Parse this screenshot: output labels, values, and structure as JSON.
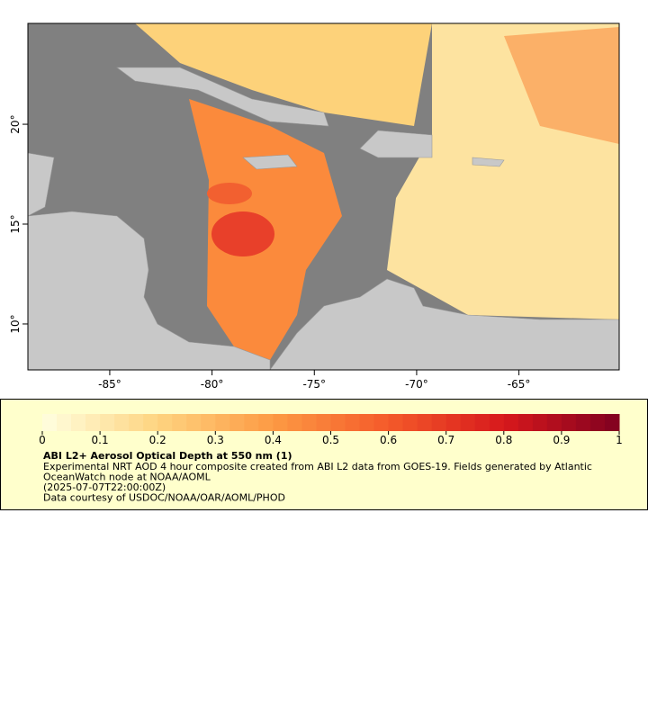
{
  "map": {
    "xlim": [
      -89,
      -60.1
    ],
    "ylim": [
      7.7,
      25.05
    ],
    "xticks": [
      {
        "value": -85,
        "label": "-85°"
      },
      {
        "value": -80,
        "label": "-80°"
      },
      {
        "value": -75,
        "label": "-75°"
      },
      {
        "value": -70,
        "label": "-70°"
      },
      {
        "value": -65,
        "label": "-65°"
      }
    ],
    "yticks": [
      {
        "value": 10,
        "label": "10°"
      },
      {
        "value": 15,
        "label": "15°"
      },
      {
        "value": 20,
        "label": "20°"
      }
    ]
  },
  "colorbar": {
    "lim": [
      0,
      1
    ],
    "ticks": [
      0,
      0.1,
      0.2,
      0.3,
      0.4,
      0.5,
      0.6,
      0.7,
      0.8,
      0.9,
      1
    ],
    "colors": [
      "#ffffe0",
      "#fed480",
      "#fd9a44",
      "#f45a2a",
      "#d7191c",
      "#800020"
    ]
  },
  "legend": {
    "title": "ABI L2+ Aerosol Optical Depth at 550 nm (1)",
    "lines": [
      "Experimental NRT AOD 4 hour composite created from ABI L2 data from GOES-19. Fields generated by Atlantic",
      "OceanWatch node at NOAA/AOML",
      "(2025-07-07T22:00:00Z)",
      "Data courtesy of USDOC/NOAA/OAR/AOML/PHOD"
    ]
  }
}
